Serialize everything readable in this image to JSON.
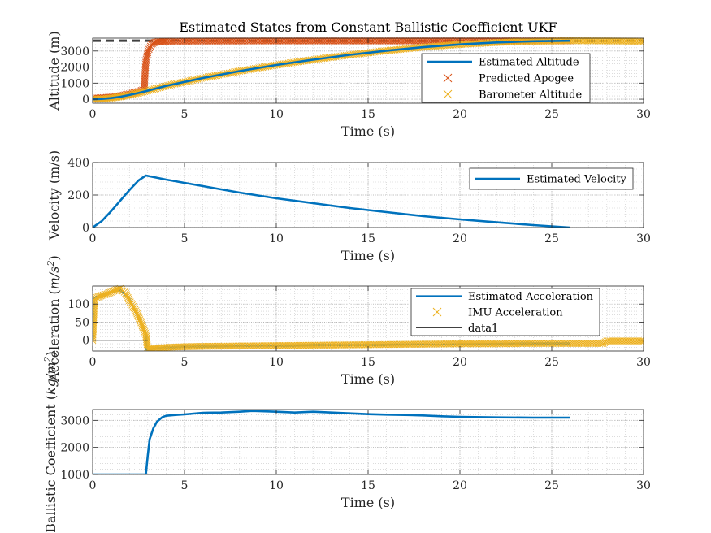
{
  "colors": {
    "blue": "#0072BD",
    "orange": "#D95319",
    "yellow": "#EDB120",
    "dash": "#404040",
    "grid": "#c8c8c8",
    "axis": "#262626"
  },
  "chart_data": [
    {
      "type": "line",
      "title": "Estimated States from Constant Ballistic Coefficient UKF",
      "xlabel": "Time (s)",
      "ylabel": "Altitude (m)",
      "xlim": [
        0,
        30
      ],
      "ylim": [
        -250,
        3800
      ],
      "xticks": [
        "0",
        "5",
        "10",
        "15",
        "20",
        "25",
        "30"
      ],
      "xtick_values": [
        0,
        5,
        10,
        15,
        20,
        25,
        30
      ],
      "yticks": [
        "0",
        "1000",
        "2000",
        "3000"
      ],
      "ytick_values": [
        0,
        1000,
        2000,
        3000
      ],
      "grid": true,
      "minor_grid": true,
      "legend": "top-right",
      "legend_entries": [
        "Estimated Altitude",
        "Predicted Apogee",
        "Barometer Altitude"
      ],
      "reference_line": {
        "y": 3640,
        "style": "dashed"
      },
      "series": [
        {
          "name": "Estimated Altitude",
          "kind": "line",
          "color": "#0072BD",
          "x": [
            0,
            0.5,
            1,
            1.5,
            2,
            2.5,
            2.9,
            4,
            6,
            8,
            10,
            12,
            14,
            16,
            18,
            20,
            22,
            24,
            26
          ],
          "y": [
            0,
            20,
            70,
            150,
            260,
            390,
            500,
            830,
            1320,
            1750,
            2130,
            2460,
            2760,
            3020,
            3240,
            3410,
            3530,
            3610,
            3640
          ]
        },
        {
          "name": "Predicted Apogee",
          "kind": "marker",
          "color": "#D95319",
          "x": [
            0,
            0.5,
            1,
            1.5,
            2,
            2.5,
            2.8,
            2.9,
            3.0,
            3.1,
            3.2,
            3.3,
            3.5,
            3.8,
            4,
            6,
            8,
            10,
            12,
            14,
            16,
            18,
            20,
            22,
            24,
            26
          ],
          "y": [
            60,
            90,
            130,
            210,
            330,
            480,
            600,
            2400,
            2900,
            3200,
            3400,
            3500,
            3580,
            3600,
            3610,
            3620,
            3625,
            3630,
            3630,
            3630,
            3630,
            3630,
            3630,
            3630,
            3630,
            3630
          ]
        },
        {
          "name": "Barometer Altitude",
          "kind": "marker",
          "color": "#EDB120",
          "x": [
            0,
            0.5,
            1,
            1.5,
            2,
            2.5,
            2.9,
            4,
            6,
            8,
            10,
            12,
            14,
            16,
            18,
            20,
            22,
            24,
            26,
            28,
            30
          ],
          "y": [
            0,
            20,
            70,
            150,
            260,
            390,
            500,
            830,
            1320,
            1750,
            2130,
            2460,
            2760,
            3020,
            3240,
            3410,
            3530,
            3610,
            3640,
            3630,
            3610
          ]
        }
      ]
    },
    {
      "type": "line",
      "xlabel": "Time (s)",
      "ylabel": "Velocity (m/s)",
      "xlim": [
        0,
        30
      ],
      "ylim": [
        0,
        400
      ],
      "xticks": [
        "0",
        "5",
        "10",
        "15",
        "20",
        "25",
        "30"
      ],
      "xtick_values": [
        0,
        5,
        10,
        15,
        20,
        25,
        30
      ],
      "yticks": [
        "0",
        "200",
        "400"
      ],
      "ytick_values": [
        0,
        200,
        400
      ],
      "grid": true,
      "minor_grid": true,
      "legend": "top-right",
      "legend_entries": [
        "Estimated Velocity"
      ],
      "series": [
        {
          "name": "Estimated Velocity",
          "kind": "line",
          "color": "#0072BD",
          "x": [
            0,
            0.5,
            1,
            1.5,
            2,
            2.5,
            2.9,
            4,
            6,
            8,
            10,
            12,
            14,
            16,
            18,
            20,
            22,
            24,
            26
          ],
          "y": [
            0,
            40,
            100,
            165,
            230,
            290,
            320,
            295,
            255,
            215,
            180,
            150,
            120,
            95,
            70,
            50,
            32,
            15,
            0
          ]
        }
      ]
    },
    {
      "type": "line",
      "xlabel": "Time (s)",
      "ylabel": "Acceleration (m/s^2)",
      "xlim": [
        0,
        30
      ],
      "ylim": [
        -30,
        150
      ],
      "xticks": [
        "0",
        "5",
        "10",
        "15",
        "20",
        "25",
        "30"
      ],
      "xtick_values": [
        0,
        5,
        10,
        15,
        20,
        25,
        30
      ],
      "yticks": [
        "0",
        "50",
        "100"
      ],
      "ytick_values": [
        0,
        50,
        100
      ],
      "grid": true,
      "minor_grid": true,
      "legend": "top-right",
      "legend_entries": [
        "Estimated Acceleration",
        "IMU Acceleration",
        "data1"
      ],
      "series": [
        {
          "name": "Estimated Acceleration",
          "kind": "line",
          "color": "#0072BD",
          "x": [
            0,
            0.08,
            0.2,
            0.5,
            1,
            1.5,
            2,
            2.5,
            2.9,
            2.95,
            3.2,
            4,
            6,
            10,
            15,
            20,
            25,
            26
          ],
          "y": [
            0,
            115,
            120,
            125,
            132,
            140,
            115,
            60,
            20,
            -30,
            -24,
            -20,
            -17,
            -15,
            -13,
            -11,
            -9,
            -9
          ]
        },
        {
          "name": "IMU Acceleration",
          "kind": "marker",
          "color": "#EDB120",
          "x": [
            0,
            0.1,
            0.3,
            0.5,
            0.8,
            1,
            1.3,
            1.5,
            1.8,
            2,
            2.3,
            2.5,
            2.7,
            2.9,
            3.0,
            3.2,
            3.5,
            4,
            5,
            6,
            8,
            10,
            12,
            14,
            16,
            18,
            20,
            22,
            24,
            26,
            27.8,
            28,
            29,
            30
          ],
          "y": [
            0,
            115,
            120,
            124,
            128,
            133,
            140,
            143,
            130,
            110,
            85,
            65,
            40,
            15,
            -25,
            -24,
            -22,
            -20,
            -18,
            -17,
            -16,
            -15,
            -14,
            -13,
            -12,
            -11,
            -10,
            -10,
            -9,
            -9,
            -9,
            -2,
            -2,
            -2
          ]
        },
        {
          "name": "data1",
          "kind": "line",
          "color": "#262626",
          "x": [
            0,
            3
          ],
          "y": [
            0,
            0
          ]
        }
      ]
    },
    {
      "type": "line",
      "xlabel": "Time (s)",
      "ylabel": "Ballistic Coefficient (kg/m^2)",
      "xlim": [
        0,
        30
      ],
      "ylim": [
        1000,
        3400
      ],
      "xticks": [
        "0",
        "5",
        "10",
        "15",
        "20",
        "25",
        "30"
      ],
      "xtick_values": [
        0,
        5,
        10,
        15,
        20,
        25,
        30
      ],
      "yticks": [
        "1000",
        "2000",
        "3000"
      ],
      "ytick_values": [
        1000,
        2000,
        3000
      ],
      "grid": true,
      "minor_grid": true,
      "series": [
        {
          "name": "Ballistic Coefficient",
          "kind": "line",
          "color": "#0072BD",
          "x": [
            0,
            2.9,
            3.0,
            3.1,
            3.3,
            3.5,
            3.8,
            4,
            4.5,
            5,
            6,
            7,
            8,
            8.7,
            10,
            11,
            12,
            13,
            14,
            15,
            16,
            17,
            18,
            19,
            20,
            22,
            24,
            26
          ],
          "y": [
            1000,
            1000,
            1700,
            2300,
            2700,
            2950,
            3120,
            3170,
            3200,
            3220,
            3280,
            3290,
            3320,
            3350,
            3320,
            3290,
            3320,
            3290,
            3260,
            3230,
            3210,
            3200,
            3180,
            3150,
            3130,
            3110,
            3100,
            3100
          ]
        }
      ]
    }
  ]
}
